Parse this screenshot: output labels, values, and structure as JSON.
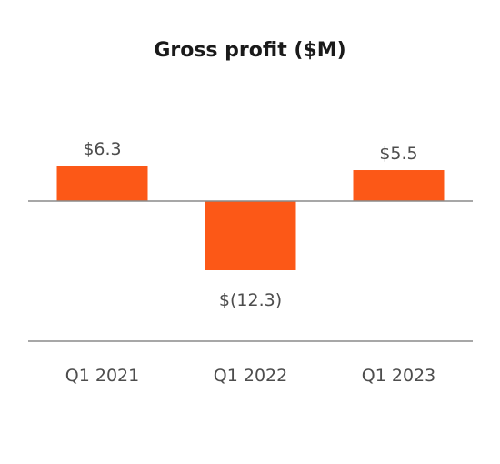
{
  "chart_data": {
    "type": "bar",
    "title": "Gross profit ($M)",
    "categories": [
      "Q1 2021",
      "Q1 2022",
      "Q1 2023"
    ],
    "values": [
      6.3,
      -12.3,
      5.5
    ],
    "data_labels": [
      "$6.3",
      "$(12.3)",
      "$5.5"
    ],
    "xlabel": "",
    "ylabel": "",
    "ylim": [
      -12.3,
      6.3
    ],
    "grid": false,
    "legend": "none",
    "bar_color": "#fc5817",
    "axis_color": "#8a8a8a"
  }
}
